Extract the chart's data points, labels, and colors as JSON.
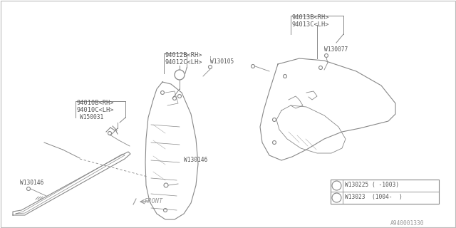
{
  "bg_color": "#ffffff",
  "line_color": "#888888",
  "text_color": "#555555",
  "footer_id": "A940001330",
  "labels": {
    "part1_main_line1": "94010B<RH>",
    "part1_main_line2": "94010C<LH>",
    "part1_sub1": "W150031",
    "part1_sub2": "W130146",
    "part2_main_line1": "94012B<RH>",
    "part2_main_line2": "94012C<LH>",
    "part2_sub1": "W130105",
    "part2_sub2": "W130146",
    "part3_main_line1": "94013B<RH>",
    "part3_main_line2": "94013C<LH>",
    "part3_sub1": "W130077",
    "legend_line1": "W130225 ( -1003)",
    "legend_line2": "W13023  (1004-  )",
    "front_label": "FRONT"
  }
}
